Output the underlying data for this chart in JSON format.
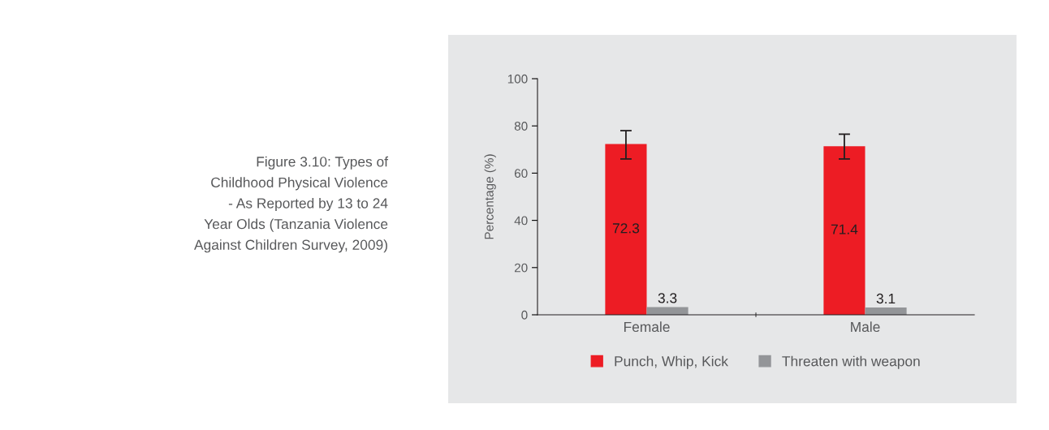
{
  "chart_data": {
    "type": "bar",
    "title": "Figure 3.10: Types of\nChildhood Physical Violence\n- As Reported by 13 to 24\nYear Olds (Tanzania Violence\nAgainst Children Survey, 2009)",
    "ylabel": "Percentage (%)",
    "categories": [
      "Female",
      "Male"
    ],
    "series": [
      {
        "name": "Punch, Whip, Kick",
        "color": "#ed1c24",
        "values": [
          72.3,
          71.4
        ],
        "errors": [
          [
            66,
            78
          ],
          [
            66,
            76.5
          ]
        ]
      },
      {
        "name": "Threaten with weapon",
        "color": "#939598",
        "values": [
          3.3,
          3.1
        ]
      }
    ],
    "ylim": [
      0,
      100
    ],
    "yticks": [
      0,
      20,
      40,
      60,
      80,
      100
    ],
    "grid": false,
    "legend": "bottom",
    "data_labels": true
  }
}
